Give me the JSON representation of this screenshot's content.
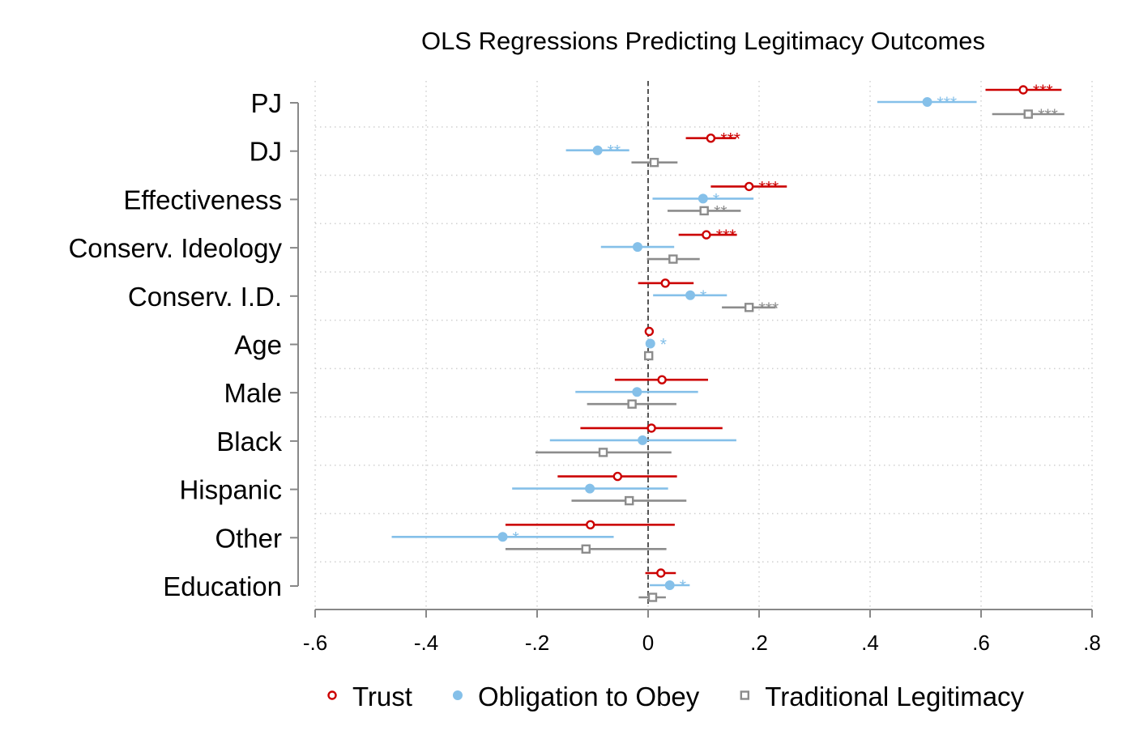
{
  "chart_data": {
    "type": "coefficient-plot",
    "title": "OLS Regressions Predicting Legitimacy Outcomes",
    "xlabel": "",
    "ylabel": "",
    "xlim": [
      -0.6,
      0.8
    ],
    "x_ticks": [
      -0.6,
      -0.4,
      -0.2,
      0,
      0.2,
      0.4,
      0.6,
      0.8
    ],
    "x_tick_labels": [
      "-.6",
      "-.4",
      "-.2",
      "0",
      ".2",
      ".4",
      ".6",
      ".8"
    ],
    "reference_line": 0,
    "grid": true,
    "legend_position": "bottom",
    "categories": [
      "PJ",
      "DJ",
      "Effectiveness",
      "Conserv. Ideology",
      "Conserv. I.D.",
      "Age",
      "Male",
      "Black",
      "Hispanic",
      "Other",
      "Education"
    ],
    "series": [
      {
        "name": "Trust",
        "color": "#cc0000",
        "marker": "hollow-circle",
        "points": [
          {
            "est": 0.676,
            "lo": 0.608,
            "hi": 0.745,
            "sig": "***"
          },
          {
            "est": 0.113,
            "lo": 0.068,
            "hi": 0.158,
            "sig": "***"
          },
          {
            "est": 0.182,
            "lo": 0.113,
            "hi": 0.25,
            "sig": "***"
          },
          {
            "est": 0.105,
            "lo": 0.055,
            "hi": 0.16,
            "sig": "***"
          },
          {
            "est": 0.031,
            "lo": -0.018,
            "hi": 0.082,
            "sig": ""
          },
          {
            "est": 0.002,
            "lo": 0.0,
            "hi": 0.004,
            "sig": ""
          },
          {
            "est": 0.025,
            "lo": -0.06,
            "hi": 0.108,
            "sig": ""
          },
          {
            "est": 0.006,
            "lo": -0.122,
            "hi": 0.134,
            "sig": ""
          },
          {
            "est": -0.055,
            "lo": -0.163,
            "hi": 0.052,
            "sig": ""
          },
          {
            "est": -0.104,
            "lo": -0.257,
            "hi": 0.048,
            "sig": ""
          },
          {
            "est": 0.023,
            "lo": -0.005,
            "hi": 0.05,
            "sig": ""
          }
        ]
      },
      {
        "name": "Obligation to Obey",
        "color": "#85c0e9",
        "marker": "filled-circle",
        "points": [
          {
            "est": 0.503,
            "lo": 0.413,
            "hi": 0.592,
            "sig": "***"
          },
          {
            "est": -0.091,
            "lo": -0.148,
            "hi": -0.034,
            "sig": "**"
          },
          {
            "est": 0.099,
            "lo": 0.008,
            "hi": 0.19,
            "sig": "*"
          },
          {
            "est": -0.019,
            "lo": -0.085,
            "hi": 0.047,
            "sig": ""
          },
          {
            "est": 0.076,
            "lo": 0.009,
            "hi": 0.142,
            "sig": "*"
          },
          {
            "est": 0.004,
            "lo": 0.002,
            "hi": 0.006,
            "sig": "*"
          },
          {
            "est": -0.02,
            "lo": -0.131,
            "hi": 0.09,
            "sig": ""
          },
          {
            "est": -0.01,
            "lo": -0.177,
            "hi": 0.159,
            "sig": ""
          },
          {
            "est": -0.105,
            "lo": -0.245,
            "hi": 0.036,
            "sig": ""
          },
          {
            "est": -0.262,
            "lo": -0.462,
            "hi": -0.062,
            "sig": "*"
          },
          {
            "est": 0.039,
            "lo": 0.003,
            "hi": 0.075,
            "sig": "*"
          }
        ]
      },
      {
        "name": "Traditional Legitimacy",
        "color": "#8c8c8c",
        "marker": "hollow-square",
        "points": [
          {
            "est": 0.685,
            "lo": 0.62,
            "hi": 0.75,
            "sig": "***"
          },
          {
            "est": 0.011,
            "lo": -0.03,
            "hi": 0.053,
            "sig": ""
          },
          {
            "est": 0.101,
            "lo": 0.035,
            "hi": 0.167,
            "sig": "**"
          },
          {
            "est": 0.045,
            "lo": -0.002,
            "hi": 0.093,
            "sig": ""
          },
          {
            "est": 0.182,
            "lo": 0.133,
            "hi": 0.23,
            "sig": "***"
          },
          {
            "est": 0.001,
            "lo": -0.001,
            "hi": 0.003,
            "sig": ""
          },
          {
            "est": -0.029,
            "lo": -0.11,
            "hi": 0.051,
            "sig": ""
          },
          {
            "est": -0.081,
            "lo": -0.203,
            "hi": 0.042,
            "sig": ""
          },
          {
            "est": -0.034,
            "lo": -0.138,
            "hi": 0.069,
            "sig": ""
          },
          {
            "est": -0.112,
            "lo": -0.257,
            "hi": 0.033,
            "sig": ""
          },
          {
            "est": 0.008,
            "lo": -0.017,
            "hi": 0.032,
            "sig": ""
          }
        ]
      }
    ]
  }
}
